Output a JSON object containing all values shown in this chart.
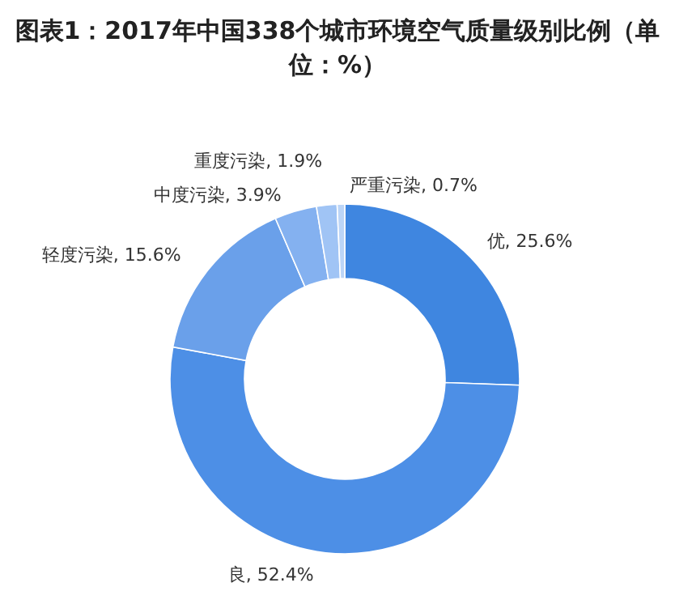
{
  "chart_data": {
    "type": "donut",
    "title": "图表1：2017年中国338个城市环境空气质量级别比例（单位：%）",
    "categories": [
      "优",
      "良",
      "轻度污染",
      "中度污染",
      "重度污染",
      "严重污染"
    ],
    "values": [
      25.6,
      52.4,
      15.6,
      3.9,
      1.9,
      0.7
    ],
    "colors": [
      "#3f86e0",
      "#4d8fe6",
      "#6aa0ea",
      "#84b1f0",
      "#a0c4f5",
      "#bcd5f7"
    ],
    "value_labels": [
      ", 25.6%",
      ", 52.4%",
      ", 15.6%",
      ", 3.9%",
      ", 1.9%",
      ", 0.7%"
    ],
    "legend": false
  }
}
